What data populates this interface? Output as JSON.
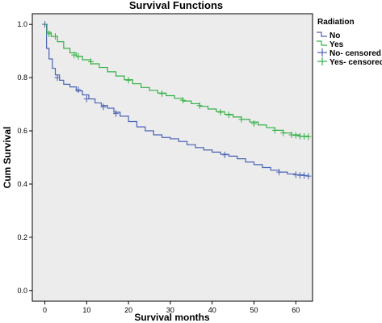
{
  "chart_data": {
    "type": "line",
    "title": "Survival Functions",
    "xlabel": "Survival months",
    "ylabel": "Cum Survival",
    "xlim": [
      -3,
      64
    ],
    "ylim": [
      -0.04,
      1.04
    ],
    "xticks": [
      0,
      10,
      20,
      30,
      40,
      50,
      60
    ],
    "yticks": [
      0.0,
      0.2,
      0.4,
      0.6,
      0.8,
      1.0
    ],
    "ytick_labels": [
      "0.0",
      "0.2",
      "0.4",
      "0.6",
      "0.8",
      "1.0"
    ],
    "grid": false,
    "step": true,
    "legend": {
      "title": "Radiation",
      "position": "right",
      "entries": [
        "No",
        "Yes",
        "No- censored",
        "Yes- censored"
      ]
    },
    "series": [
      {
        "name": "No",
        "color": "#4a63b4",
        "x": [
          0,
          0.4,
          1,
          1.8,
          2.5,
          3.5,
          4.5,
          6,
          7.5,
          9,
          10.5,
          12,
          13.5,
          15,
          16.5,
          18,
          20,
          22,
          24,
          26,
          28,
          30,
          32,
          34,
          36,
          38,
          40,
          42,
          44,
          46,
          48,
          50,
          52,
          54,
          56,
          58,
          60,
          62,
          63
        ],
        "y": [
          1.0,
          0.91,
          0.87,
          0.835,
          0.81,
          0.79,
          0.775,
          0.765,
          0.75,
          0.735,
          0.72,
          0.705,
          0.695,
          0.685,
          0.67,
          0.655,
          0.635,
          0.615,
          0.6,
          0.585,
          0.575,
          0.57,
          0.56,
          0.548,
          0.537,
          0.528,
          0.52,
          0.512,
          0.505,
          0.495,
          0.483,
          0.473,
          0.462,
          0.452,
          0.445,
          0.438,
          0.435,
          0.432,
          0.43
        ],
        "censored_x": [
          0,
          3,
          8,
          10,
          14,
          17,
          43,
          56,
          60,
          61,
          62,
          63
        ],
        "censored_y": [
          1.0,
          0.8,
          0.755,
          0.72,
          0.69,
          0.665,
          0.51,
          0.445,
          0.435,
          0.433,
          0.432,
          0.43
        ]
      },
      {
        "name": "Yes",
        "color": "#35b048",
        "x": [
          0,
          0.5,
          1.5,
          3,
          4.5,
          6,
          7.5,
          9,
          11,
          13,
          15,
          17,
          19,
          21,
          23,
          25,
          27,
          29,
          31,
          33,
          35,
          37,
          39,
          41,
          43,
          45,
          47,
          49,
          51,
          53,
          55,
          57,
          59,
          61,
          63
        ],
        "y": [
          1.0,
          0.97,
          0.955,
          0.935,
          0.91,
          0.893,
          0.88,
          0.867,
          0.852,
          0.838,
          0.822,
          0.806,
          0.792,
          0.777,
          0.763,
          0.752,
          0.742,
          0.732,
          0.722,
          0.712,
          0.702,
          0.692,
          0.682,
          0.672,
          0.662,
          0.652,
          0.643,
          0.633,
          0.622,
          0.612,
          0.602,
          0.592,
          0.585,
          0.58,
          0.578
        ],
        "censored_x": [
          1,
          2.5,
          7,
          8,
          11,
          20,
          28,
          33,
          37,
          42,
          44,
          47,
          50,
          55,
          57,
          59,
          60,
          61,
          62,
          63
        ],
        "censored_y": [
          0.965,
          0.955,
          0.885,
          0.88,
          0.86,
          0.79,
          0.74,
          0.715,
          0.695,
          0.67,
          0.66,
          0.643,
          0.627,
          0.602,
          0.592,
          0.585,
          0.583,
          0.58,
          0.579,
          0.578
        ]
      }
    ]
  }
}
